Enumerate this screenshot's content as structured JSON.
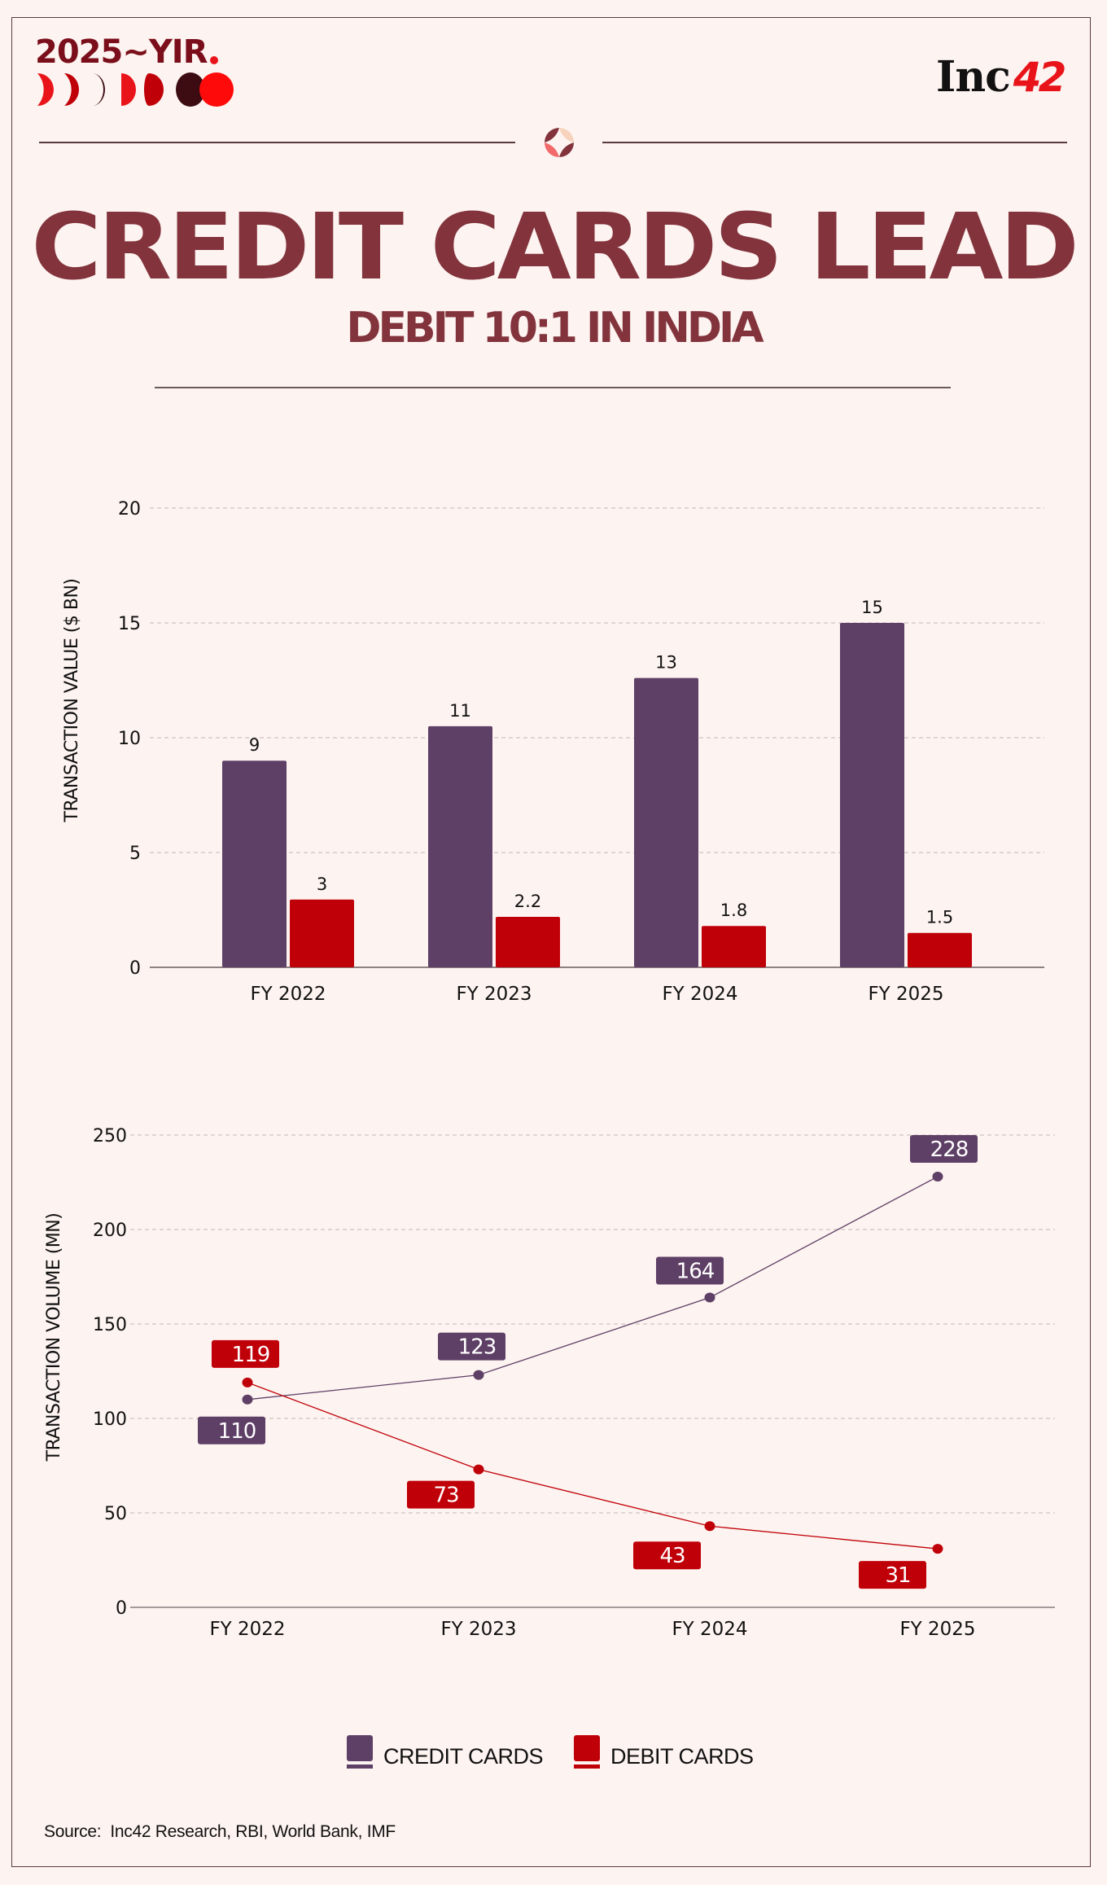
{
  "branding": {
    "series_logo_text": "2025~YIR",
    "publisher_logo_word": "Inc",
    "publisher_logo_number": "42"
  },
  "header": {
    "title": "CREDIT CARDS LEAD",
    "subtitle": "DEBIT 10:1 IN INDIA"
  },
  "colors": {
    "credit": "#5e3f66",
    "debit": "#c00008",
    "title": "#82333c",
    "background": "#fdf3f0",
    "accent_red": "#e8141a"
  },
  "legend": [
    {
      "label": "CREDIT CARDS",
      "color": "#5e3f66"
    },
    {
      "label": "DEBIT CARDS",
      "color": "#c00008"
    }
  ],
  "source": "Source:  Inc42 Research, RBI, World Bank, IMF",
  "chart_data": [
    {
      "type": "bar",
      "title": "",
      "xlabel": "",
      "ylabel": "TRANSACTION VALUE ($ BN)",
      "categories": [
        "FY 2022",
        "FY 2023",
        "FY 2024",
        "FY 2025"
      ],
      "ylim": [
        0,
        20
      ],
      "yticks": [
        0,
        5,
        10,
        15,
        20
      ],
      "grid": true,
      "series": [
        {
          "name": "CREDIT CARDS",
          "values": [
            9,
            10.5,
            12.6,
            15
          ],
          "labels": [
            "9",
            "11",
            "13",
            "15"
          ]
        },
        {
          "name": "DEBIT CARDS",
          "values": [
            2.95,
            2.2,
            1.8,
            1.5
          ],
          "labels": [
            "3",
            "2.2",
            "1.8",
            "1.5"
          ]
        }
      ],
      "legend": "bottom"
    },
    {
      "type": "line",
      "title": "",
      "xlabel": "",
      "ylabel": "TRANSACTION VOLUME (MN)",
      "categories": [
        "FY 2022",
        "FY 2023",
        "FY 2024",
        "FY 2025"
      ],
      "ylim": [
        0,
        250
      ],
      "yticks": [
        0,
        50,
        100,
        150,
        200,
        250
      ],
      "grid": true,
      "series": [
        {
          "name": "CREDIT CARDS",
          "values": [
            110,
            123,
            164,
            228
          ],
          "labels": [
            "110",
            "123",
            "164",
            "228"
          ]
        },
        {
          "name": "DEBIT CARDS",
          "values": [
            119,
            73,
            43,
            31
          ],
          "labels": [
            "119",
            "73",
            "43",
            "31"
          ]
        }
      ],
      "legend": "bottom"
    }
  ]
}
